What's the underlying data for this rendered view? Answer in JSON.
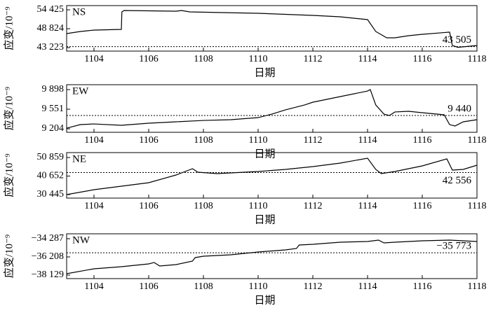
{
  "chart_data": [
    {
      "type": "line",
      "name": "NS",
      "y_label": "应变/10⁻⁹",
      "x_label": "日期",
      "xlim": [
        1103,
        1118
      ],
      "xticks": [
        1104,
        1106,
        1108,
        1110,
        1112,
        1114,
        1116,
        1118
      ],
      "ylim": [
        42186,
        55670
      ],
      "yticks": [
        {
          "value": 43223,
          "label": "43 223"
        },
        {
          "value": 48824,
          "label": "48 824"
        },
        {
          "value": 54425,
          "label": "54 425"
        }
      ],
      "reference": {
        "value": 43505,
        "label": "43 505"
      },
      "color": "#000000",
      "x": [
        1103,
        1103.5,
        1104,
        1105,
        1105.02,
        1105.1,
        1107,
        1107.2,
        1107.5,
        1110,
        1112,
        1113,
        1114,
        1114.3,
        1114.7,
        1115,
        1115.5,
        1116,
        1117,
        1117.1,
        1117.3,
        1118
      ],
      "values": [
        47374,
        48000,
        48410,
        48618,
        53800,
        54218,
        54010,
        54218,
        53800,
        53390,
        52766,
        52351,
        51521,
        48000,
        46130,
        46130,
        46750,
        47170,
        47800,
        43850,
        43300,
        43850
      ]
    },
    {
      "type": "line",
      "name": "EW",
      "y_label": "应变/10⁻⁹",
      "x_label": "日期",
      "xlim": [
        1103,
        1118
      ],
      "xticks": [
        1104,
        1106,
        1108,
        1110,
        1112,
        1114,
        1116,
        1118
      ],
      "ylim": [
        9142,
        9985
      ],
      "yticks": [
        {
          "value": 9204,
          "label": "9 204"
        },
        {
          "value": 9551,
          "label": "9 551"
        },
        {
          "value": 9898,
          "label": "9 898"
        }
      ],
      "reference": {
        "value": 9440,
        "label": "9 440"
      },
      "color": "#000000",
      "x": [
        1103,
        1103.5,
        1104,
        1105,
        1106,
        1107,
        1108,
        1109,
        1110,
        1110.5,
        1111,
        1111.7,
        1112,
        1113,
        1114,
        1114.1,
        1114.3,
        1114.6,
        1114.8,
        1115,
        1115.5,
        1116,
        1116.8,
        1117,
        1117.2,
        1117.5,
        1118
      ],
      "values": [
        9216,
        9278,
        9290,
        9266,
        9303,
        9328,
        9352,
        9365,
        9402,
        9464,
        9539,
        9626,
        9675,
        9774,
        9873,
        9898,
        9626,
        9464,
        9440,
        9502,
        9514,
        9489,
        9452,
        9278,
        9254,
        9328,
        9365
      ]
    },
    {
      "type": "line",
      "name": "NE",
      "y_label": "应变/10⁻⁹",
      "x_label": "日期",
      "xlim": [
        1103,
        1118
      ],
      "xticks": [
        1104,
        1106,
        1108,
        1110,
        1112,
        1114,
        1116,
        1118
      ],
      "ylim": [
        28520,
        53554
      ],
      "yticks": [
        {
          "value": 30445,
          "label": "30 445"
        },
        {
          "value": 40652,
          "label": "40 652"
        },
        {
          "value": 50859,
          "label": "50 859"
        }
      ],
      "reference": {
        "value": 42556,
        "label": "42 556"
      },
      "color": "#000000",
      "x": [
        1103,
        1104,
        1105,
        1106,
        1107,
        1107.6,
        1107.8,
        1108.5,
        1109,
        1110,
        1111,
        1112,
        1113,
        1114,
        1114.3,
        1114.5,
        1115,
        1116,
        1116.9,
        1117.1,
        1117.5,
        1118
      ],
      "values": [
        30445,
        33140,
        35065,
        36990,
        41225,
        44700,
        42770,
        42000,
        42385,
        43155,
        44310,
        45850,
        47780,
        50475,
        44310,
        42000,
        43155,
        46235,
        50090,
        43925,
        44310,
        46620
      ]
    },
    {
      "type": "line",
      "name": "NW",
      "y_label": "应变/10⁻⁹",
      "x_label": "日期",
      "xlim": [
        1103,
        1118
      ],
      "xticks": [
        1104,
        1106,
        1108,
        1110,
        1112,
        1114,
        1116,
        1118
      ],
      "ylim": [
        -38499,
        -33770
      ],
      "yticks": [
        {
          "value": -38129,
          "label": "−38 129"
        },
        {
          "value": -36208,
          "label": "−36 208"
        },
        {
          "value": -34287,
          "label": "−34 287"
        }
      ],
      "reference": {
        "value": -35773,
        "label": "−35 773"
      },
      "color": "#000000",
      "x": [
        1103,
        1104,
        1105,
        1106,
        1106.2,
        1106.4,
        1107,
        1107.6,
        1107.7,
        1108,
        1109,
        1110,
        1111,
        1111.4,
        1111.5,
        1112,
        1113,
        1114,
        1114.4,
        1114.6,
        1115,
        1116,
        1117,
        1118
      ],
      "values": [
        -37981,
        -37464,
        -37242,
        -36946,
        -36798,
        -37168,
        -37020,
        -36651,
        -36281,
        -36133,
        -35986,
        -35690,
        -35468,
        -35320,
        -34950,
        -34878,
        -34656,
        -34582,
        -34434,
        -34730,
        -34656,
        -34508,
        -34434,
        -34582
      ]
    }
  ]
}
